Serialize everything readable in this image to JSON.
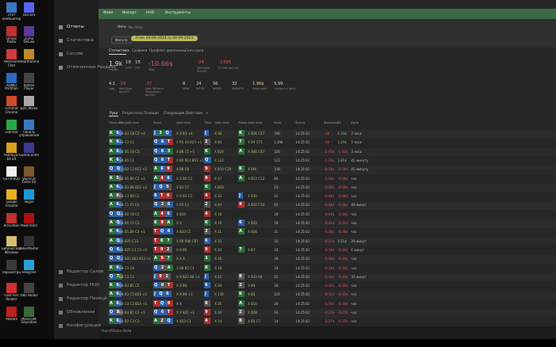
{
  "desktop_icons": [
    "Этот компьютер",
    "Discord",
    "Online Radio",
    "Zuma Deluxe",
    "Restream Chat",
    "HearthStone",
    "AOMEI Partition",
    "Roblox Player",
    "FireShot Chrome",
    "Доп_Меню",
    "uTorrent",
    "Панель управления",
    "PotPlayer 64 bit",
    "GameCenter",
    "GSTimeGO",
    "World of Tanks EU",
    "Google Chrome",
    "Skype",
    "Activation",
    "PokerStars",
    "Библиотека Windows",
    "PokerMaster",
    "Параметры",
    "Telegram",
    "Foxit PDF Reader",
    "OBS Studio",
    "AIDA64",
    "Minecraft Education"
  ],
  "sidebar": {
    "top": [
      "Отчеты",
      "Статистика",
      "Сессии",
      "Отмеченные Раздачи"
    ],
    "bottom": [
      "Редактор Селов",
      "Редактор HUD",
      "Редактор Позиций",
      "Обновления",
      "Конфигурация"
    ]
  },
  "menu": [
    "Файл",
    "Импорт",
    "HUD",
    "Инструменты"
  ],
  "player": "Hero",
  "alias": "(No Alias)",
  "filter": "Фильтр",
  "date_range": "From 04-09-2024 to 04-09-2024",
  "stat_tabs": [
    "Статистика",
    "Графики",
    "Префлоп диапазоны",
    "Силы руки"
  ],
  "stats": [
    {
      "value": "1.9k",
      "label": "Hands"
    },
    {
      "value": "18",
      "label": "VPIP"
    },
    {
      "value": "15",
      "label": "PFR"
    },
    {
      "value": "-10.66$",
      "label": "Won"
    },
    {
      "value": "-24",
      "label": "Win Rate bb/100"
    },
    {
      "value": "-1395",
      "label": "EV diff bb/100"
    },
    {
      "value": "4.1",
      "label": "Agg"
    },
    {
      "value": "-29",
      "label": "Win Rate bb/100"
    },
    {
      "value": "-37",
      "label": "Won Without Showdown bb/100"
    },
    {
      "value": "8",
      "label": "3Bet"
    },
    {
      "value": "24",
      "label": "WTSD"
    },
    {
      "value": "56",
      "label": "W$SD"
    },
    {
      "value": "32",
      "label": "WWSF%"
    },
    {
      "value": "1.96$",
      "label": "Rake paid"
    },
    {
      "value": "5.99",
      "label": "Скорость bb/h"
    }
  ],
  "hand_tabs": [
    "Руки",
    "Результаты",
    "Позиции",
    "Следующие Действия",
    "+"
  ],
  "table": {
    "headers": [
      "Префлоп",
      "Поз",
      "Действия",
      "Флоп",
      "Действия",
      "Тёрн",
      "Действия",
      "Ривер",
      "Действия",
      "Банк",
      "Время",
      "Выигрыш",
      "EV",
      "Дата"
    ],
    "rows": [
      [
        "K6",
        "BB",
        "B3 C8 C2 +2",
        "J3Q",
        "X X B3 +4",
        "J",
        "X 38",
        "K",
        "X B26 C57",
        "196",
        "14:25:02",
        "-2$",
        "0.16$",
        "3 часа"
      ],
      [
        "K6",
        "SB",
        "C3 C2",
        "Q6T",
        "X R5 X4 B27 +1",
        "2",
        "X 60",
        "7",
        "X R9 C71",
        "1.29k",
        "14:25:02",
        "-2$",
        "1.29$",
        "3 часа"
      ],
      [
        "A6",
        "BB",
        "B5 C6 C3",
        "Q63",
        "X B6 C5 +1",
        "K",
        "X B24",
        "A",
        "X B40 C47",
        "126",
        "14:25:02",
        "-1.41$",
        "-1.41$",
        "3 часа"
      ],
      [
        "K6",
        "SB",
        "B5 C2",
        "Q6T",
        "X B5 B14 B61 +1",
        "Q",
        "X 122",
        null,
        null,
        "122",
        "14:25:02",
        "-1.26$",
        "1.81$",
        "41 минуту"
      ],
      [
        "QQ",
        "CO",
        "B2 C2 B12 +1",
        "A69",
        "X B8 C8",
        "9",
        "X B10 C18",
        "K",
        "X B6t",
        "138",
        "14:25:02",
        "-0.79$",
        "-0.79$",
        "41 минуту"
      ],
      [
        "K5",
        "BB",
        "B5 B9 C2 +2",
        "A46",
        "X X B5 C3",
        "9",
        "X 37",
        "A",
        "X B12 C12",
        "86",
        "14:25:02",
        "-0.58$",
        "-0.58$",
        "час"
      ],
      [
        "A6",
        "BB",
        "B3 B8 B22 +1",
        "JQ5",
        "X B3 C7",
        "K",
        "X B24",
        null,
        null,
        "24",
        "14:25:02",
        "-0.56$",
        "-0.56$",
        "час"
      ],
      [
        "A8",
        "BB",
        "C3 B8 C2",
        "6T9",
        "X X B3 C3",
        "4",
        "X 32",
        "J",
        "X B30",
        "32",
        "14:25:02",
        "-0.48$",
        "-0.48$",
        "час"
      ],
      [
        "A6",
        "BB",
        "C1 F1 C4",
        "Q26",
        "X R5 C3",
        "2",
        "X 29",
        "4",
        "X B10 C10",
        "50",
        "14:25:02",
        "-0.48$",
        "-0.48$",
        "48 минут"
      ],
      [
        "QQ",
        "BB",
        "B2 C8 C2",
        "A46",
        "X B16",
        "4",
        "X 18",
        null,
        null,
        "18",
        "14:25:02",
        "-0.44$",
        "-0.44$",
        "час"
      ],
      [
        "AQ",
        "BB",
        "B5 C2 C3",
        "K9A",
        "X X",
        "K",
        "X 16",
        "6",
        "X B52",
        "16",
        "14:25:02",
        "-0.42$",
        "-0.42$",
        "час"
      ],
      [
        "K6",
        "BB",
        "B5 B9 C3 +1",
        "TQ6",
        "X B10 C5",
        "2",
        "X 31",
        "A",
        "X B16",
        "31",
        "14:25:02",
        "-0.38$",
        "-0.38$",
        "час"
      ],
      [
        "AQ",
        "BB",
        "B25 C13",
        "TK7",
        "X R6 R86 C87",
        "6",
        "X 35",
        null,
        null,
        "35",
        "14:25:02",
        "-0.37$",
        "0.51$",
        "26 минут"
      ],
      [
        "Q6",
        "BB",
        "B25 C3 C3 +1",
        "T92",
        "X X B5",
        "9",
        "X 20",
        "7",
        "X B7",
        "34",
        "14:25:02",
        "-0.34$",
        "-0.34$",
        "6 минут"
      ],
      [
        "QQ",
        "SB",
        "B25 B63 B12 +1",
        "A97",
        "X X X",
        "3",
        "X 16",
        null,
        null,
        "16",
        "14:25:02",
        "-0.34$",
        "-0.34$",
        "час"
      ],
      [
        "K6",
        "BB",
        "C3 C8",
        "Q2A",
        "X B8 B5 C3",
        "K",
        "X 18",
        null,
        null,
        "18",
        "14:25:02",
        "-0.34$",
        "-0.34$",
        "час"
      ],
      [
        "Q7",
        "BB",
        "C3 C2",
        "J92",
        "X X B23 X6 +1",
        "J",
        "X 26",
        "8",
        "X B32 R6",
        "32",
        "14:25:02",
        "-0.34$",
        "-0.34$",
        "10 минут"
      ],
      [
        "K6",
        "BB",
        "B3 B5 C5",
        "Q8T",
        "X X B4",
        "6",
        "X 29",
        "2",
        "X B9",
        "30",
        "14:25:02",
        "-0.32$",
        "-0.32$",
        "час"
      ],
      [
        "A6",
        "BB",
        "B3 C5 B35 +2",
        "JQ6",
        "X X B4 +1",
        "J",
        "X 135",
        "K",
        "X B2",
        "135",
        "14:25:02",
        "-0.31$",
        "-0.31$",
        "час"
      ],
      [
        "A6",
        "BB",
        "C3 C3 B14 +1",
        "TQ9",
        "X X",
        "8",
        "X 26",
        "A",
        "X B10",
        "26",
        "14:25:02",
        "-0.30$",
        "-0.30$",
        "час"
      ],
      [
        "Q8",
        "BB",
        "B3 B5 C2 +1",
        "Q6T",
        "X X B21 +1",
        "9",
        "X 30",
        "2",
        "X B28",
        "30",
        "14:25:02",
        "-0.27$",
        "-0.27$",
        "час"
      ],
      [
        "K6",
        "BB",
        "B2 C3 C3",
        "A2Q",
        "X B53 C3",
        "4",
        "X 14",
        "8",
        "X B5 C7",
        "14",
        "14:25:02",
        "-0.27$",
        "-0.27$",
        "час"
      ]
    ]
  },
  "footer": "HandShake Beta"
}
